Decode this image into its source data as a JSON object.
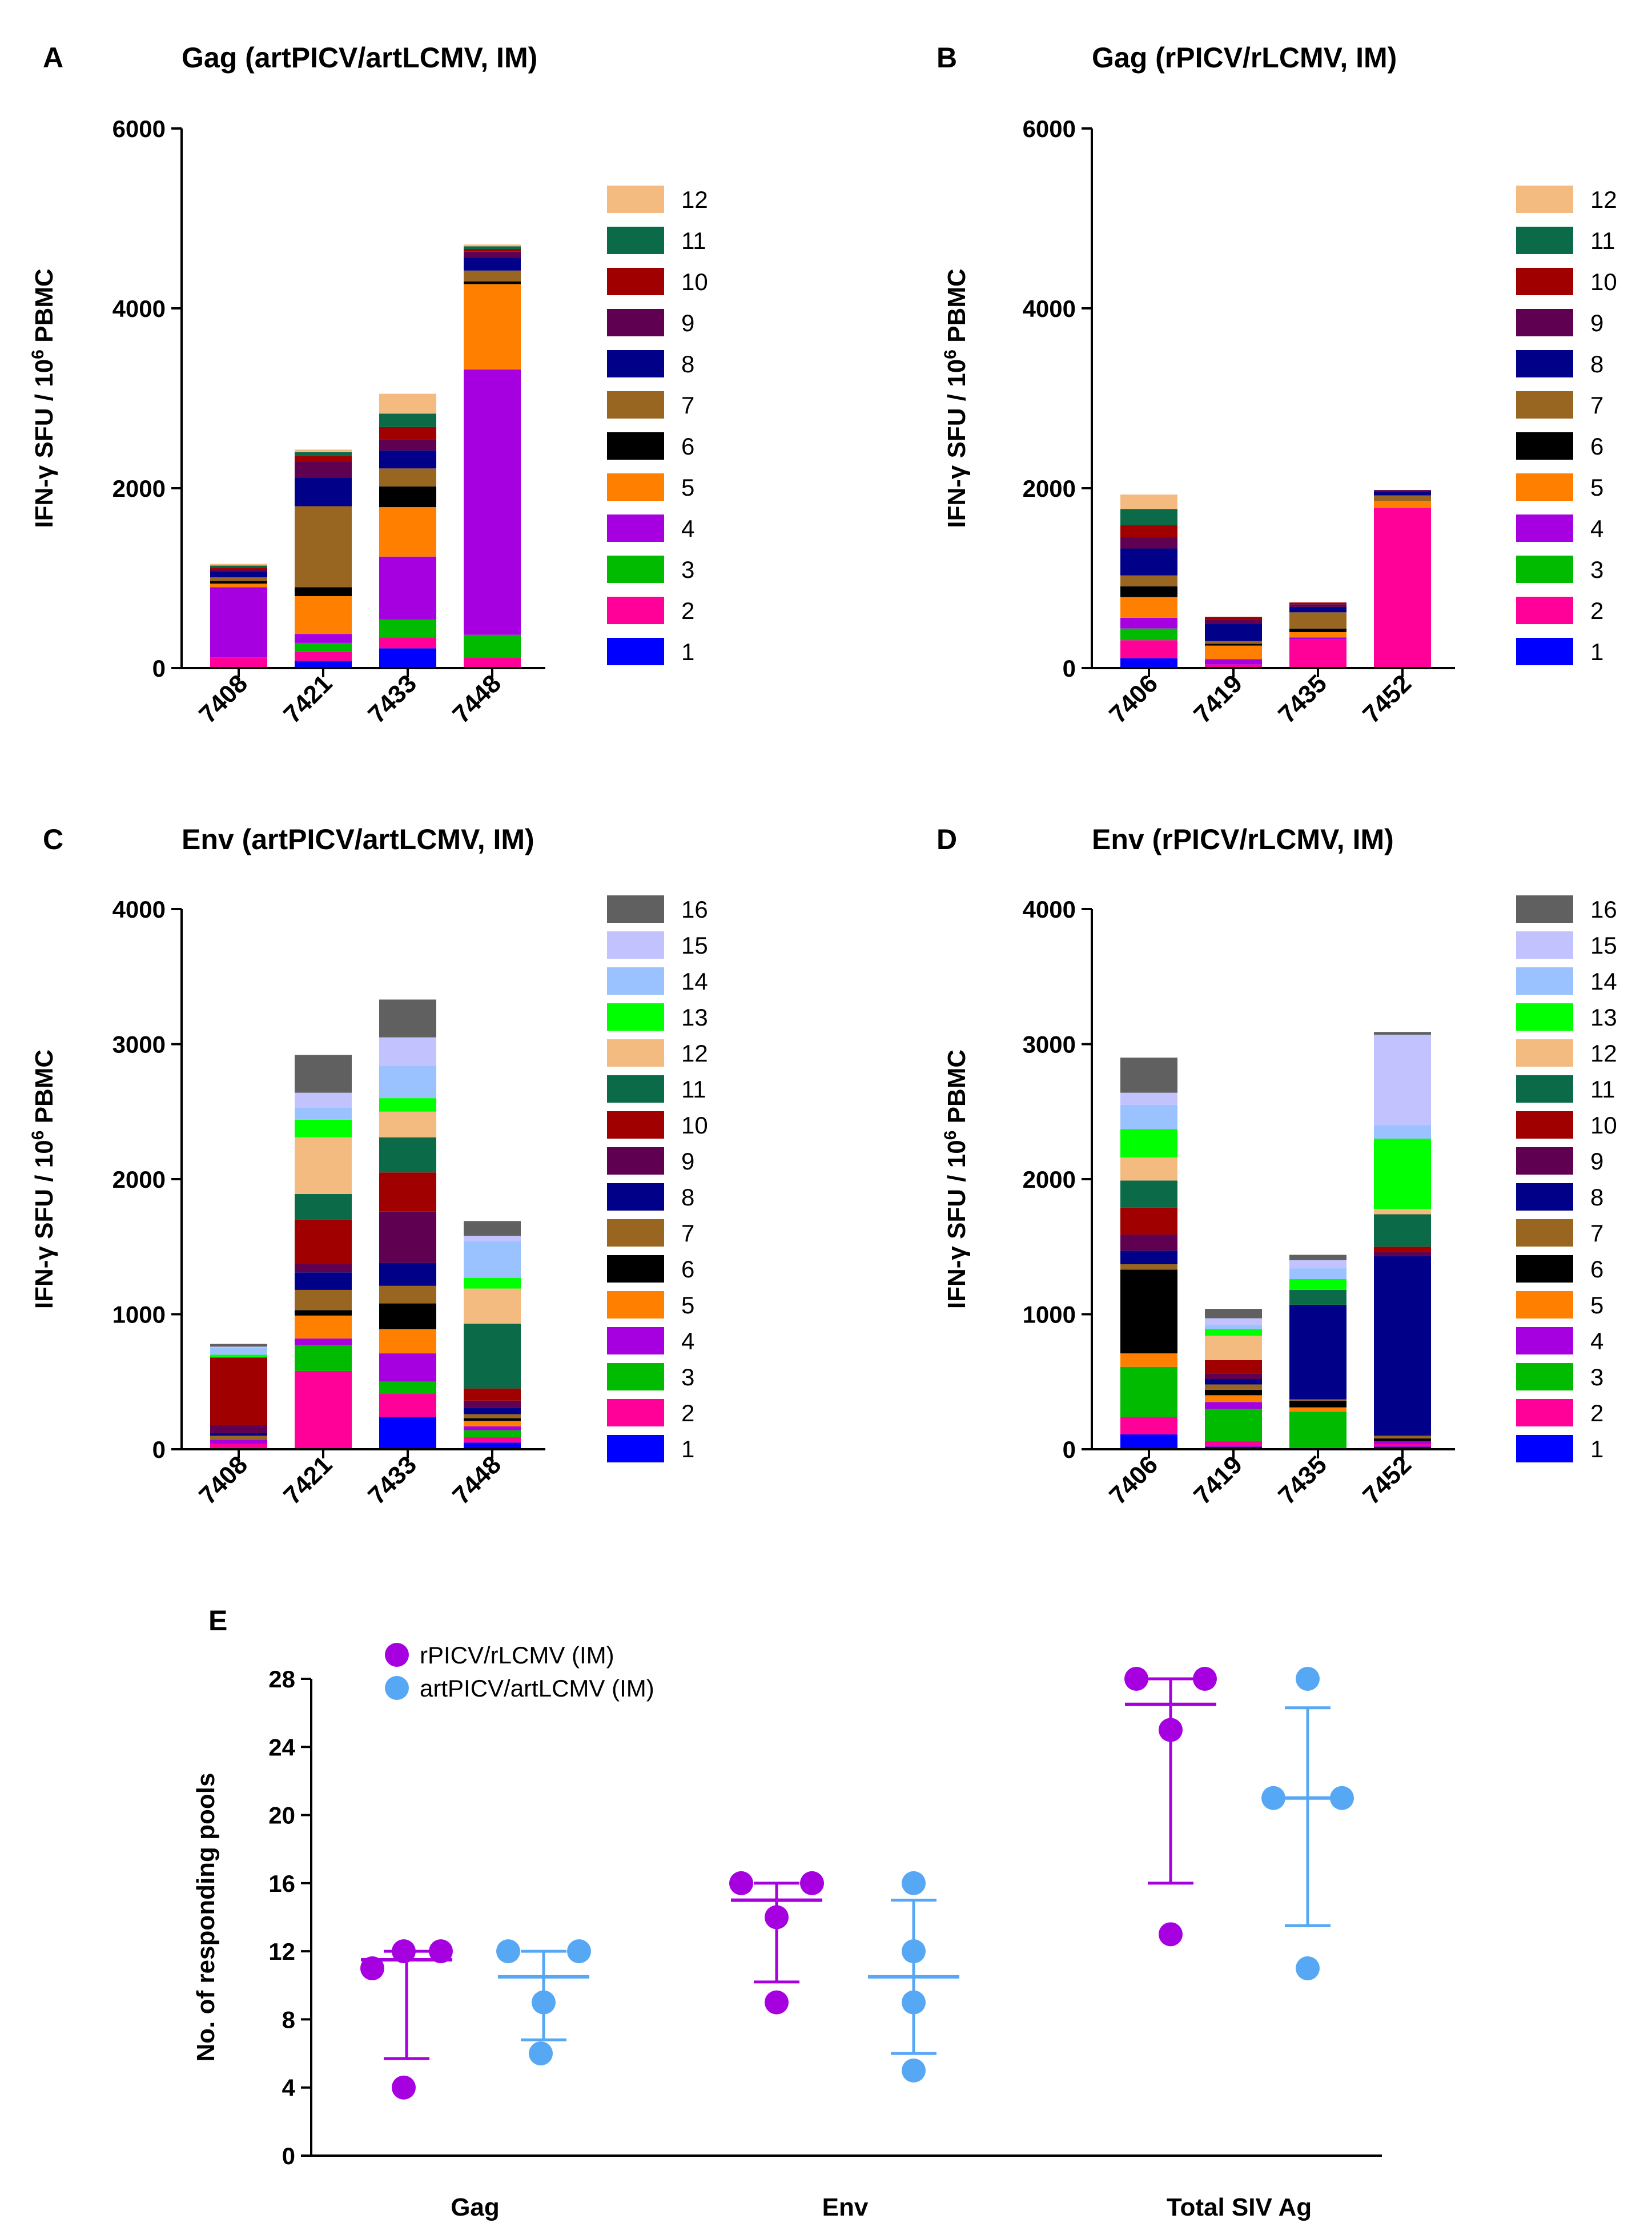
{
  "panels": [
    {
      "id": "A",
      "letter": "A",
      "title": "Gag (artPICV/artLCMV, IM)",
      "chart_data": {
        "type": "bar",
        "stacked": true,
        "categories": [
          "7408",
          "7421",
          "7433",
          "7448"
        ],
        "yticks": [
          0,
          2000,
          4000,
          6000
        ],
        "ylim": [
          0,
          6000
        ],
        "ylabel_main": "IFN-γ SFU / 10",
        "ylabel_sup": "6",
        "ylabel_end": " PBMC",
        "series": [
          {
            "name": "1",
            "color": "#0000FF",
            "values": [
              0,
              80,
              220,
              0
            ]
          },
          {
            "name": "2",
            "color": "#FF0099",
            "values": [
              120,
              100,
              120,
              120
            ]
          },
          {
            "name": "3",
            "color": "#00BB00",
            "values": [
              0,
              100,
              200,
              250
            ]
          },
          {
            "name": "4",
            "color": "#A600E0",
            "values": [
              780,
              100,
              700,
              2950
            ]
          },
          {
            "name": "5",
            "color": "#FF8000",
            "values": [
              40,
              420,
              550,
              950
            ]
          },
          {
            "name": "6",
            "color": "#000000",
            "values": [
              30,
              100,
              230,
              30
            ]
          },
          {
            "name": "7",
            "color": "#996622",
            "values": [
              40,
              900,
              200,
              120
            ]
          },
          {
            "name": "8",
            "color": "#000088",
            "values": [
              60,
              320,
              200,
              150
            ]
          },
          {
            "name": "9",
            "color": "#600050",
            "values": [
              30,
              180,
              120,
              60
            ]
          },
          {
            "name": "10",
            "color": "#A00000",
            "values": [
              20,
              60,
              140,
              30
            ]
          },
          {
            "name": "11",
            "color": "#0B6B49",
            "values": [
              20,
              40,
              150,
              30
            ]
          },
          {
            "name": "12",
            "color": "#F4BB80",
            "values": [
              20,
              30,
              220,
              20
            ]
          }
        ]
      }
    },
    {
      "id": "B",
      "letter": "B",
      "title": "Gag (rPICV/rLCMV, IM)",
      "chart_data": {
        "type": "bar",
        "stacked": true,
        "categories": [
          "7406",
          "7419",
          "7435",
          "7452"
        ],
        "yticks": [
          0,
          2000,
          4000,
          6000
        ],
        "ylim": [
          0,
          6000
        ],
        "ylabel_main": "IFN-γ SFU / 10",
        "ylabel_sup": "6",
        "ylabel_end": " PBMC",
        "series": [
          {
            "name": "1",
            "color": "#0000FF",
            "values": [
              110,
              0,
              0,
              0
            ]
          },
          {
            "name": "2",
            "color": "#FF0099",
            "values": [
              200,
              40,
              320,
              1780
            ]
          },
          {
            "name": "3",
            "color": "#00BB00",
            "values": [
              130,
              0,
              0,
              0
            ]
          },
          {
            "name": "4",
            "color": "#A600E0",
            "values": [
              120,
              60,
              20,
              0
            ]
          },
          {
            "name": "5",
            "color": "#FF8000",
            "values": [
              230,
              150,
              60,
              80
            ]
          },
          {
            "name": "6",
            "color": "#000000",
            "values": [
              120,
              20,
              40,
              0
            ]
          },
          {
            "name": "7",
            "color": "#996622",
            "values": [
              120,
              30,
              180,
              60
            ]
          },
          {
            "name": "8",
            "color": "#000088",
            "values": [
              300,
              200,
              60,
              40
            ]
          },
          {
            "name": "9",
            "color": "#600050",
            "values": [
              130,
              40,
              30,
              20
            ]
          },
          {
            "name": "10",
            "color": "#A00000",
            "values": [
              130,
              30,
              20,
              0
            ]
          },
          {
            "name": "11",
            "color": "#0B6B49",
            "values": [
              180,
              0,
              0,
              0
            ]
          },
          {
            "name": "12",
            "color": "#F4BB80",
            "values": [
              160,
              0,
              0,
              0
            ]
          }
        ]
      }
    },
    {
      "id": "C",
      "letter": "C",
      "title": "Env (artPICV/artLCMV, IM)",
      "chart_data": {
        "type": "bar",
        "stacked": true,
        "categories": [
          "7408",
          "7421",
          "7433",
          "7448"
        ],
        "yticks": [
          0,
          1000,
          2000,
          3000,
          4000
        ],
        "ylim": [
          0,
          4000
        ],
        "ylabel_main": "IFN-γ SFU / 10",
        "ylabel_sup": "6",
        "ylabel_end": " PBMC",
        "series": [
          {
            "name": "1",
            "color": "#0000FF",
            "values": [
              0,
              0,
              240,
              50
            ]
          },
          {
            "name": "2",
            "color": "#FF0099",
            "values": [
              40,
              580,
              170,
              40
            ]
          },
          {
            "name": "3",
            "color": "#00BB00",
            "values": [
              0,
              190,
              90,
              50
            ]
          },
          {
            "name": "4",
            "color": "#A600E0",
            "values": [
              30,
              50,
              210,
              30
            ]
          },
          {
            "name": "5",
            "color": "#FF8000",
            "values": [
              0,
              170,
              180,
              40
            ]
          },
          {
            "name": "6",
            "color": "#000000",
            "values": [
              0,
              40,
              190,
              20
            ]
          },
          {
            "name": "7",
            "color": "#996622",
            "values": [
              30,
              150,
              130,
              30
            ]
          },
          {
            "name": "8",
            "color": "#000088",
            "values": [
              20,
              130,
              170,
              50
            ]
          },
          {
            "name": "9",
            "color": "#600050",
            "values": [
              60,
              60,
              380,
              50
            ]
          },
          {
            "name": "10",
            "color": "#A00000",
            "values": [
              500,
              330,
              290,
              90
            ]
          },
          {
            "name": "11",
            "color": "#0B6B49",
            "values": [
              0,
              190,
              260,
              480
            ]
          },
          {
            "name": "12",
            "color": "#F4BB80",
            "values": [
              0,
              420,
              190,
              260
            ]
          },
          {
            "name": "13",
            "color": "#00FF00",
            "values": [
              20,
              130,
              100,
              80
            ]
          },
          {
            "name": "14",
            "color": "#99C2FF",
            "values": [
              50,
              90,
              240,
              270
            ]
          },
          {
            "name": "15",
            "color": "#C2C2FF",
            "values": [
              10,
              110,
              210,
              40
            ]
          },
          {
            "name": "16",
            "color": "#606060",
            "values": [
              20,
              280,
              280,
              110
            ]
          }
        ]
      }
    },
    {
      "id": "D",
      "letter": "D",
      "title": "Env (rPICV/rLCMV, IM)",
      "chart_data": {
        "type": "bar",
        "stacked": true,
        "categories": [
          "7406",
          "7419",
          "7435",
          "7452"
        ],
        "yticks": [
          0,
          1000,
          2000,
          3000,
          4000
        ],
        "ylim": [
          0,
          4000
        ],
        "ylabel_main": "IFN-γ SFU / 10",
        "ylabel_sup": "6",
        "ylabel_end": " PBMC",
        "series": [
          {
            "name": "1",
            "color": "#0000FF",
            "values": [
              110,
              20,
              0,
              20
            ]
          },
          {
            "name": "2",
            "color": "#FF0099",
            "values": [
              130,
              40,
              10,
              20
            ]
          },
          {
            "name": "3",
            "color": "#00BB00",
            "values": [
              370,
              240,
              270,
              0
            ]
          },
          {
            "name": "4",
            "color": "#A600E0",
            "values": [
              0,
              50,
              0,
              20
            ]
          },
          {
            "name": "5",
            "color": "#FF8000",
            "values": [
              100,
              50,
              30,
              0
            ]
          },
          {
            "name": "6",
            "color": "#000000",
            "values": [
              620,
              40,
              50,
              20
            ]
          },
          {
            "name": "7",
            "color": "#996622",
            "values": [
              40,
              40,
              10,
              20
            ]
          },
          {
            "name": "8",
            "color": "#000088",
            "values": [
              100,
              40,
              700,
              1330
            ]
          },
          {
            "name": "9",
            "color": "#600050",
            "values": [
              120,
              40,
              0,
              30
            ]
          },
          {
            "name": "10",
            "color": "#A00000",
            "values": [
              200,
              100,
              0,
              40
            ]
          },
          {
            "name": "11",
            "color": "#0B6B49",
            "values": [
              200,
              0,
              110,
              240
            ]
          },
          {
            "name": "12",
            "color": "#F4BB80",
            "values": [
              170,
              180,
              0,
              40
            ]
          },
          {
            "name": "13",
            "color": "#00FF00",
            "values": [
              210,
              50,
              80,
              520
            ]
          },
          {
            "name": "14",
            "color": "#99C2FF",
            "values": [
              180,
              30,
              80,
              100
            ]
          },
          {
            "name": "15",
            "color": "#C2C2FF",
            "values": [
              90,
              50,
              60,
              670
            ]
          },
          {
            "name": "16",
            "color": "#606060",
            "values": [
              260,
              70,
              40,
              20
            ]
          }
        ]
      }
    }
  ],
  "panelE": {
    "letter": "E",
    "chart_data": {
      "type": "scatter",
      "ylabel": "No. of responding pools",
      "categories": [
        "Gag",
        "Env",
        "Total SIV Ag"
      ],
      "yticks": [
        0,
        4,
        8,
        12,
        16,
        20,
        24,
        28
      ],
      "ylim": [
        0,
        28
      ],
      "groups": [
        {
          "name": "rPICV/rLCMV (IM)",
          "color": "#A600E0",
          "points": [
            [
              11,
              12,
              12,
              4
            ],
            [
              16,
              16,
              14,
              9
            ],
            [
              28,
              28,
              25,
              13
            ]
          ],
          "mean": [
            11.5,
            15,
            26.5
          ],
          "err_low": [
            5.7,
            10.2,
            16
          ],
          "err_high": [
            12,
            16,
            28
          ]
        },
        {
          "name": "artPICV/artLCMV (IM)",
          "color": "#56A8F5",
          "points": [
            [
              12,
              12,
              9,
              6
            ],
            [
              16,
              12,
              9,
              5
            ],
            [
              28,
              21,
              21,
              11
            ]
          ],
          "mean": [
            10.5,
            10.5,
            21
          ],
          "err_low": [
            6.8,
            6,
            13.5
          ],
          "err_high": [
            12,
            15,
            26.3
          ]
        }
      ]
    }
  }
}
